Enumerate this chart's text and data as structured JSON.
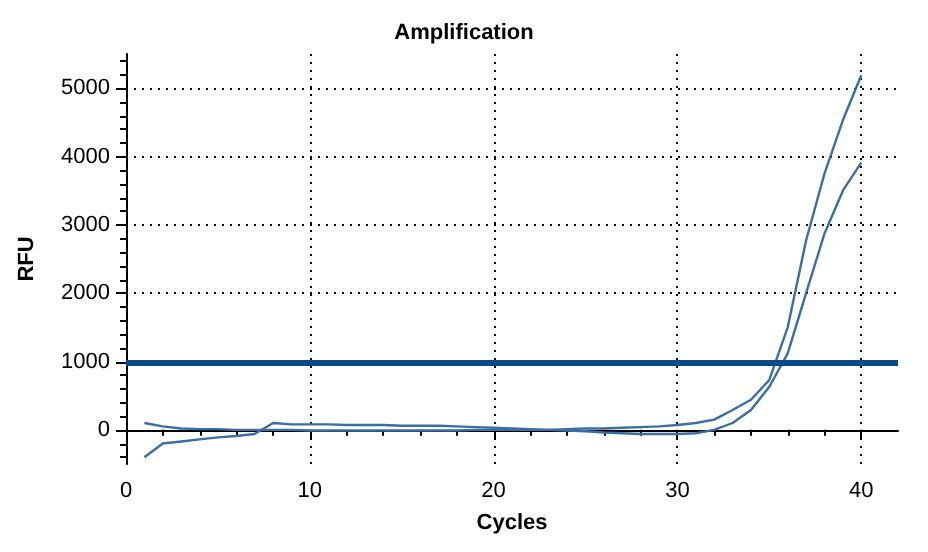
{
  "chart_data": {
    "type": "line",
    "title": "Amplification",
    "xlabel": "Cycles",
    "ylabel": "RFU",
    "x": [
      1,
      2,
      3,
      4,
      5,
      6,
      7,
      8,
      9,
      10,
      11,
      12,
      13,
      14,
      15,
      16,
      17,
      18,
      19,
      20,
      21,
      22,
      23,
      24,
      25,
      26,
      27,
      28,
      29,
      30,
      31,
      32,
      33,
      34,
      35,
      36,
      37,
      38,
      39,
      40
    ],
    "series": [
      {
        "color": "#3a6ea5",
        "values": [
          100,
          50,
          20,
          10,
          10,
          0,
          0,
          0,
          0,
          -10,
          -10,
          -10,
          -10,
          -10,
          -10,
          -10,
          -10,
          -10,
          0,
          0,
          0,
          0,
          0,
          10,
          20,
          20,
          30,
          40,
          50,
          70,
          100,
          150,
          290,
          440,
          730,
          1500,
          2770,
          3750,
          4530,
          5190
        ]
      },
      {
        "color": "#3a6ea5",
        "values": [
          -400,
          -200,
          -170,
          -140,
          -110,
          -90,
          -60,
          100,
          80,
          80,
          80,
          70,
          70,
          70,
          60,
          60,
          60,
          50,
          40,
          30,
          20,
          10,
          0,
          -10,
          -20,
          -40,
          -50,
          -60,
          -60,
          -60,
          -50,
          0,
          100,
          290,
          630,
          1120,
          2000,
          2870,
          3500,
          3910
        ]
      }
    ],
    "xlim": [
      0,
      42
    ],
    "xticks": [
      0,
      10,
      20,
      30,
      40
    ],
    "ylim": [
      -500,
      5500
    ],
    "yticks": [
      0,
      1000,
      2000,
      3000,
      4000,
      5000
    ],
    "ref_lines": [
      {
        "axis": "y",
        "value": 1000,
        "color": "#0b4a8a",
        "line_style": "solid"
      }
    ],
    "grid": true,
    "marker": "none",
    "line_style": "solid"
  }
}
